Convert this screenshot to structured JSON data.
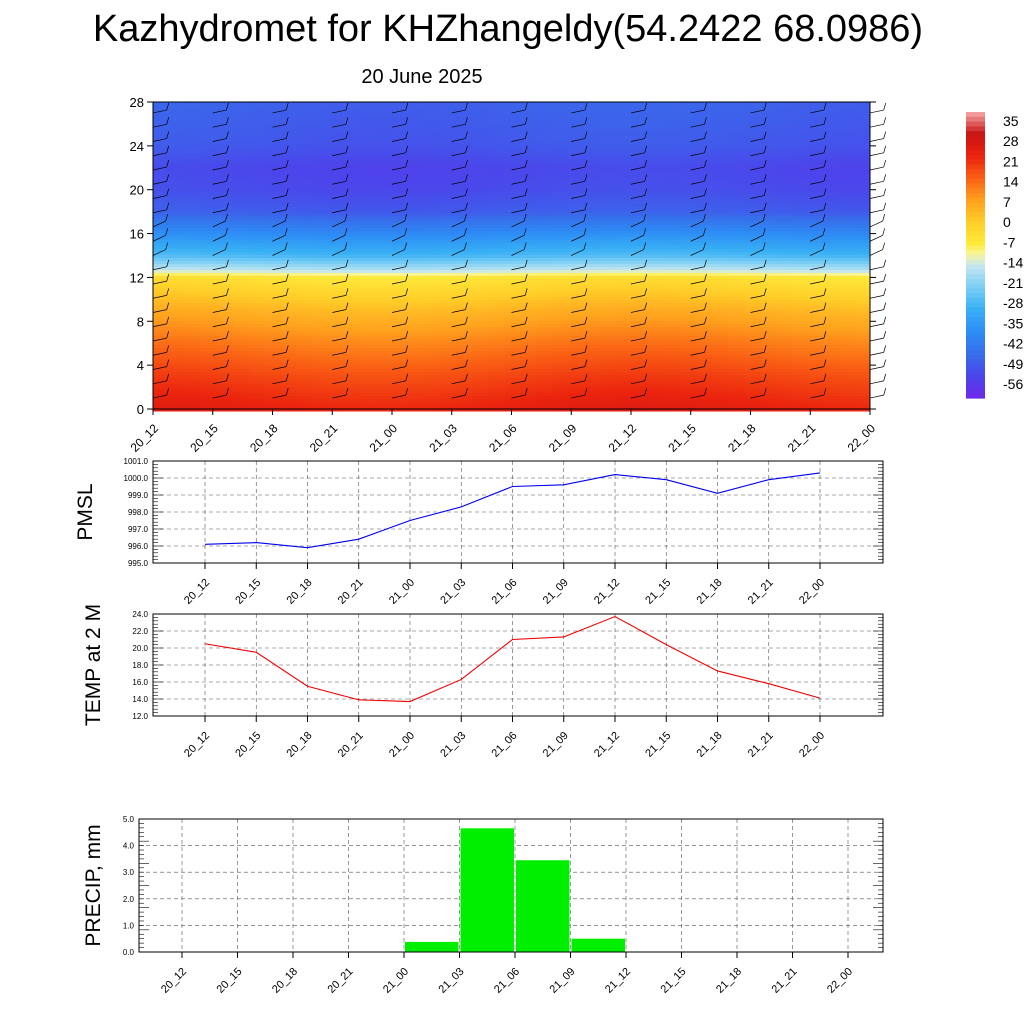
{
  "title": "Kazhydromet for KHZhangeldy(54.2422 68.0986)",
  "subtitle": "20 June 2025",
  "time_labels": [
    "20_12",
    "20_15",
    "20_18",
    "20_21",
    "21_00",
    "21_03",
    "21_06",
    "21_09",
    "21_12",
    "21_15",
    "21_18",
    "21_21",
    "22_00"
  ],
  "colors": {
    "pmsl_line": "#0000ee",
    "temp_line": "#ee0000",
    "precip_bar": "#00ee00",
    "wind_barb": "#000000"
  },
  "chart_data": [
    {
      "type": "heatmap",
      "y_ticks": [
        "0",
        "4",
        "8",
        "12",
        "16",
        "20",
        "24",
        "28"
      ],
      "ylim": [
        0,
        28
      ],
      "colorbar": {
        "labels": [
          "35",
          "28",
          "21",
          "14",
          "7",
          "0",
          "-7",
          "-14",
          "-21",
          "-28",
          "-35",
          "-42",
          "-49",
          "-56"
        ],
        "range": [
          -56,
          35
        ]
      },
      "grid": false
    },
    {
      "type": "line",
      "ylabel": "PMSL",
      "y_ticks": [
        "1001.0",
        "1000.0",
        "999.0",
        "998.0",
        "997.0",
        "996.0",
        "995.0"
      ],
      "ylim": [
        995.0,
        1001.0
      ],
      "values": [
        996.1,
        996.2,
        995.9,
        996.4,
        997.5,
        998.3,
        999.5,
        999.6,
        1000.2,
        999.9,
        999.1,
        999.9,
        1000.3
      ],
      "grid": true
    },
    {
      "type": "line",
      "ylabel": "TEMP at 2 M",
      "y_ticks": [
        "24.0",
        "22.0",
        "20.0",
        "18.0",
        "16.0",
        "14.0",
        "12.0"
      ],
      "ylim": [
        12.0,
        24.0
      ],
      "values": [
        20.5,
        19.5,
        15.5,
        13.9,
        13.7,
        16.3,
        21.0,
        21.3,
        23.7,
        20.4,
        17.3,
        15.8,
        14.1
      ],
      "grid": true
    },
    {
      "type": "bar",
      "ylabel": "PRECIP, mm",
      "y_ticks": [
        "5.0",
        "4.0",
        "3.0",
        "2.0",
        "1.0",
        "0.0"
      ],
      "ylim": [
        0.0,
        5.0
      ],
      "values": [
        0,
        0,
        0,
        0,
        0,
        0.38,
        4.65,
        3.45,
        0.5,
        0,
        0,
        0,
        0
      ],
      "grid": true
    }
  ]
}
